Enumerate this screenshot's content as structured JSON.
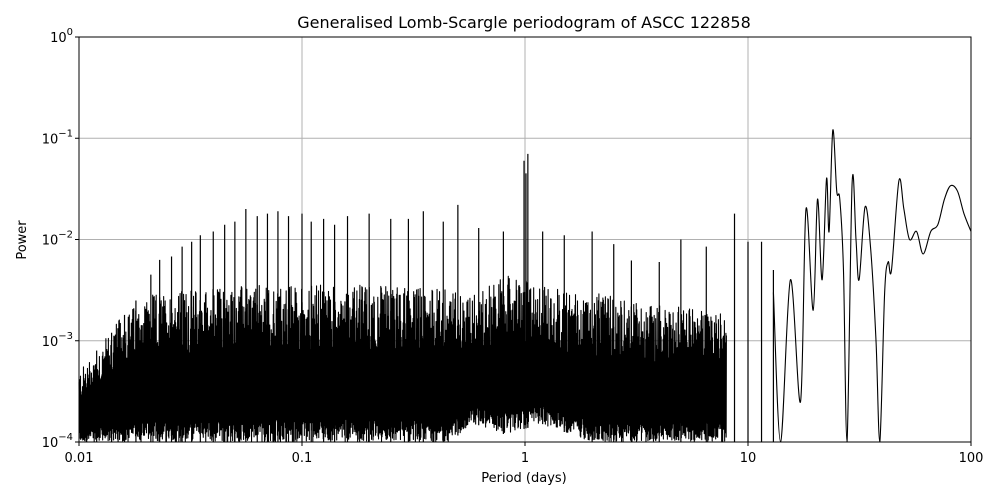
{
  "chart_data": {
    "type": "line",
    "title": "Generalised Lomb-Scargle periodogram of ASCC 122858",
    "xlabel": "Period (days)",
    "ylabel": "Power",
    "xscale": "log",
    "yscale": "log",
    "xlim": [
      0.01,
      100
    ],
    "ylim": [
      0.0001,
      1
    ],
    "grid": true,
    "legend": "none",
    "x_ticks": [
      {
        "value": 0.01,
        "label": "0.01"
      },
      {
        "value": 0.1,
        "label": "0.1"
      },
      {
        "value": 1,
        "label": "1"
      },
      {
        "value": 10,
        "label": "10"
      },
      {
        "value": 100,
        "label": "100"
      }
    ],
    "y_ticks": [
      {
        "value": 0.0001,
        "base": "10",
        "exp": "−4"
      },
      {
        "value": 0.001,
        "base": "10",
        "exp": "−3"
      },
      {
        "value": 0.01,
        "base": "10",
        "exp": "−2"
      },
      {
        "value": 0.1,
        "base": "10",
        "exp": "−1"
      },
      {
        "value": 1,
        "base": "10",
        "exp": "0"
      }
    ],
    "series": [
      {
        "color": "#000000",
        "noise_envelope": {
          "x": [
            0.01,
            0.012,
            0.015,
            0.02,
            0.03,
            0.05,
            0.1,
            0.2,
            0.3,
            0.45,
            0.6,
            0.8,
            1.2,
            2,
            3,
            5,
            8
          ],
          "floor": [
            0.0001,
            0.0001,
            0.0001,
            0.0001,
            0.0001,
            0.0001,
            0.0001,
            0.0001,
            0.0001,
            0.0001,
            0.00015,
            0.00012,
            0.00015,
            0.0001,
            0.0001,
            0.0001,
            0.0001
          ],
          "ceiling": [
            0.0005,
            0.0008,
            0.0016,
            0.0028,
            0.0032,
            0.0035,
            0.0036,
            0.0036,
            0.0035,
            0.0033,
            0.003,
            0.0045,
            0.0035,
            0.003,
            0.0025,
            0.0022,
            0.002
          ]
        },
        "peaks": [
          {
            "x": 0.012,
            "y": 0.0008
          },
          {
            "x": 0.014,
            "y": 0.0012
          },
          {
            "x": 0.016,
            "y": 0.0018
          },
          {
            "x": 0.018,
            "y": 0.0025
          },
          {
            "x": 0.021,
            "y": 0.0045
          },
          {
            "x": 0.023,
            "y": 0.0063
          },
          {
            "x": 0.026,
            "y": 0.0068
          },
          {
            "x": 0.029,
            "y": 0.0085
          },
          {
            "x": 0.032,
            "y": 0.0095
          },
          {
            "x": 0.035,
            "y": 0.011
          },
          {
            "x": 0.04,
            "y": 0.012
          },
          {
            "x": 0.045,
            "y": 0.014
          },
          {
            "x": 0.05,
            "y": 0.015
          },
          {
            "x": 0.056,
            "y": 0.02
          },
          {
            "x": 0.063,
            "y": 0.017
          },
          {
            "x": 0.07,
            "y": 0.018
          },
          {
            "x": 0.078,
            "y": 0.019
          },
          {
            "x": 0.087,
            "y": 0.017
          },
          {
            "x": 0.1,
            "y": 0.018
          },
          {
            "x": 0.11,
            "y": 0.015
          },
          {
            "x": 0.125,
            "y": 0.016
          },
          {
            "x": 0.14,
            "y": 0.014
          },
          {
            "x": 0.16,
            "y": 0.017
          },
          {
            "x": 0.2,
            "y": 0.018
          },
          {
            "x": 0.25,
            "y": 0.016
          },
          {
            "x": 0.3,
            "y": 0.016
          },
          {
            "x": 0.35,
            "y": 0.019
          },
          {
            "x": 0.43,
            "y": 0.015
          },
          {
            "x": 0.5,
            "y": 0.022
          },
          {
            "x": 0.62,
            "y": 0.013
          },
          {
            "x": 0.8,
            "y": 0.012
          },
          {
            "x": 0.99,
            "y": 0.06
          },
          {
            "x": 1.01,
            "y": 0.045
          },
          {
            "x": 1.03,
            "y": 0.07
          },
          {
            "x": 1.2,
            "y": 0.012
          },
          {
            "x": 1.5,
            "y": 0.011
          },
          {
            "x": 2,
            "y": 0.012
          },
          {
            "x": 2.5,
            "y": 0.009
          },
          {
            "x": 3,
            "y": 0.0062
          },
          {
            "x": 4,
            "y": 0.006
          },
          {
            "x": 5,
            "y": 0.01
          },
          {
            "x": 6.5,
            "y": 0.0085
          },
          {
            "x": 8.7,
            "y": 0.018
          },
          {
            "x": 10,
            "y": 0.0095
          },
          {
            "x": 11.5,
            "y": 0.0095
          },
          {
            "x": 13,
            "y": 0.005
          }
        ],
        "points": [
          {
            "x": 13,
            "y": 0.003
          },
          {
            "x": 14,
            "y": 0.0001
          },
          {
            "x": 15.5,
            "y": 0.004
          },
          {
            "x": 17.2,
            "y": 0.00025
          },
          {
            "x": 18.2,
            "y": 0.02
          },
          {
            "x": 19.6,
            "y": 0.002
          },
          {
            "x": 20.5,
            "y": 0.025
          },
          {
            "x": 21.5,
            "y": 0.004
          },
          {
            "x": 22.5,
            "y": 0.04
          },
          {
            "x": 23.1,
            "y": 0.012
          },
          {
            "x": 24,
            "y": 0.12
          },
          {
            "x": 25,
            "y": 0.03
          },
          {
            "x": 25.8,
            "y": 0.025
          },
          {
            "x": 26.8,
            "y": 0.005
          },
          {
            "x": 27.8,
            "y": 0.0001
          },
          {
            "x": 29.3,
            "y": 0.036
          },
          {
            "x": 30.5,
            "y": 0.01
          },
          {
            "x": 31.5,
            "y": 0.004
          },
          {
            "x": 33.5,
            "y": 0.021
          },
          {
            "x": 35.5,
            "y": 0.008
          },
          {
            "x": 37.5,
            "y": 0.001
          },
          {
            "x": 39,
            "y": 0.0001
          },
          {
            "x": 41,
            "y": 0.003
          },
          {
            "x": 42.5,
            "y": 0.006
          },
          {
            "x": 44,
            "y": 0.005
          },
          {
            "x": 47.5,
            "y": 0.038
          },
          {
            "x": 50,
            "y": 0.02
          },
          {
            "x": 53,
            "y": 0.01
          },
          {
            "x": 57,
            "y": 0.012
          },
          {
            "x": 61,
            "y": 0.0072
          },
          {
            "x": 66,
            "y": 0.012
          },
          {
            "x": 71,
            "y": 0.014
          },
          {
            "x": 76,
            "y": 0.025
          },
          {
            "x": 81,
            "y": 0.034
          },
          {
            "x": 87,
            "y": 0.03
          },
          {
            "x": 93,
            "y": 0.018
          },
          {
            "x": 100,
            "y": 0.012
          }
        ]
      }
    ]
  }
}
